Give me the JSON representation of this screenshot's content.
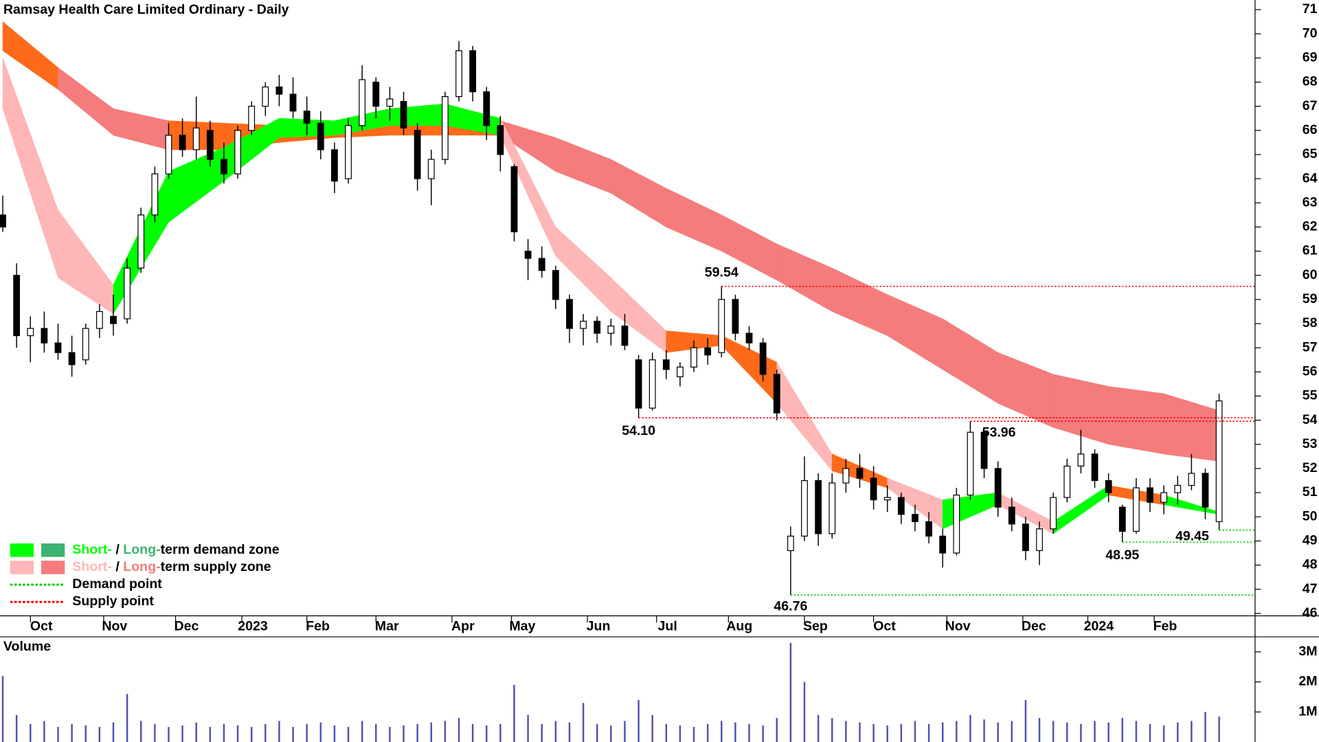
{
  "chart_data": [
    {
      "type": "candlestick",
      "title": "Ramsay Health Care Limited Ordinary - Daily",
      "xlim": [
        -0.2,
        90.6
      ],
      "xticks": [
        {
          "value": 2.0,
          "label": "Oct"
        },
        {
          "value": 7.3,
          "label": "Nov"
        },
        {
          "value": 12.5,
          "label": "Dec"
        },
        {
          "value": 17.3,
          "label": "2023"
        },
        {
          "value": 22,
          "label": "Feb"
        },
        {
          "value": 27,
          "label": "Mar"
        },
        {
          "value": 32.5,
          "label": "Apr"
        },
        {
          "value": 36.8,
          "label": "May"
        },
        {
          "value": 42.3,
          "label": "Jun"
        },
        {
          "value": 47.3,
          "label": "Jul"
        },
        {
          "value": 52.5,
          "label": "Aug"
        },
        {
          "value": 58,
          "label": "Sep"
        },
        {
          "value": 63,
          "label": "Oct"
        },
        {
          "value": 68.3,
          "label": "Nov"
        },
        {
          "value": 73.8,
          "label": "Dec"
        },
        {
          "value": 78.5,
          "label": "2024"
        },
        {
          "value": 83.3,
          "label": "Feb"
        }
      ],
      "ylim": [
        45.9,
        71.4
      ],
      "yticks": [
        46,
        47,
        48,
        49,
        50,
        51,
        52,
        53,
        54,
        55,
        56,
        57,
        58,
        59,
        60,
        61,
        62,
        63,
        64,
        65,
        66,
        67,
        68,
        69,
        70,
        71
      ],
      "up_color": "#ffffff",
      "down_color": "#000000",
      "ohlc": [
        [
          62.5,
          63.3,
          61.8,
          62.0
        ],
        [
          60,
          60.5,
          57,
          57.5
        ],
        [
          57.5,
          58.3,
          56.4,
          57.8
        ],
        [
          57.8,
          58.5,
          56.8,
          57.2
        ],
        [
          57.2,
          58,
          56.5,
          56.8
        ],
        [
          56.8,
          57.5,
          55.8,
          56.3
        ],
        [
          56.5,
          58,
          56.3,
          57.8
        ],
        [
          57.8,
          58.8,
          57.4,
          58.5
        ],
        [
          58.3,
          59.2,
          57.5,
          58
        ],
        [
          58.2,
          60.7,
          58,
          60.3
        ],
        [
          60.3,
          62.8,
          60.1,
          62.5
        ],
        [
          62.5,
          64.5,
          62.2,
          64.2
        ],
        [
          64.2,
          66.3,
          64,
          65.8
        ],
        [
          65.8,
          66.5,
          64.9,
          65.2
        ],
        [
          65.2,
          67.4,
          64.8,
          66.1
        ],
        [
          66,
          66.4,
          64.5,
          64.8
        ],
        [
          64.8,
          65.5,
          63.8,
          64.2
        ],
        [
          64.2,
          66.2,
          64,
          66
        ],
        [
          66,
          67.2,
          65.8,
          67
        ],
        [
          67,
          68,
          66.6,
          67.8
        ],
        [
          67.8,
          68.3,
          67,
          67.5
        ],
        [
          67.5,
          68.2,
          66.5,
          66.8
        ],
        [
          66.8,
          67.4,
          65.8,
          66.3
        ],
        [
          66.3,
          66.8,
          64.8,
          65.2
        ],
        [
          65.2,
          65.5,
          63.4,
          63.9
        ],
        [
          64,
          66.5,
          63.8,
          66.2
        ],
        [
          66.2,
          68.7,
          66,
          68.1
        ],
        [
          68,
          68.2,
          66.5,
          67
        ],
        [
          67,
          67.8,
          66.4,
          67.3
        ],
        [
          67.2,
          67.6,
          65.8,
          66.1
        ],
        [
          66,
          66.3,
          63.5,
          64
        ],
        [
          64,
          65.2,
          62.9,
          64.8
        ],
        [
          64.8,
          67.6,
          64.6,
          67.4
        ],
        [
          67.4,
          69.7,
          67.2,
          69.3
        ],
        [
          69.3,
          69.5,
          67.2,
          67.6
        ],
        [
          67.6,
          67.8,
          65.6,
          66.2
        ],
        [
          66.2,
          66.6,
          64.3,
          65
        ],
        [
          64.5,
          64.6,
          61.4,
          61.8
        ],
        [
          61,
          61.5,
          59.8,
          60.7
        ],
        [
          60.7,
          61.2,
          59.9,
          60.2
        ],
        [
          60.2,
          60.4,
          58.6,
          59
        ],
        [
          59,
          59.2,
          57.2,
          57.8
        ],
        [
          57.8,
          58.4,
          57.1,
          58.1
        ],
        [
          58.1,
          58.3,
          57.2,
          57.6
        ],
        [
          57.6,
          58.2,
          57.1,
          57.9
        ],
        [
          57.9,
          58.4,
          56.9,
          57.1
        ],
        [
          56.5,
          56.7,
          54.1,
          54.5
        ],
        [
          54.5,
          56.8,
          54.4,
          56.5
        ],
        [
          56.5,
          56.9,
          55.7,
          56.1
        ],
        [
          55.8,
          56.4,
          55.4,
          56.2
        ],
        [
          56.2,
          57.3,
          56,
          57
        ],
        [
          57,
          57.4,
          56.3,
          56.7
        ],
        [
          56.8,
          59.54,
          56.6,
          59
        ],
        [
          59,
          59.2,
          57.3,
          57.6
        ],
        [
          57.6,
          57.9,
          56.9,
          57.2
        ],
        [
          57.2,
          57.4,
          55.6,
          55.9
        ],
        [
          55.9,
          56.1,
          54,
          54.3
        ],
        [
          48.6,
          49.6,
          46.76,
          49.2
        ],
        [
          49.2,
          52.5,
          49,
          51.5
        ],
        [
          51.5,
          51.8,
          48.8,
          49.3
        ],
        [
          49.3,
          51.8,
          49.1,
          51.4
        ],
        [
          51.4,
          52.4,
          51,
          52
        ],
        [
          52,
          52.6,
          51.2,
          51.6
        ],
        [
          51.6,
          52.1,
          50.3,
          50.7
        ],
        [
          50.7,
          51.3,
          50.2,
          50.8
        ],
        [
          50.8,
          51,
          49.7,
          50.1
        ],
        [
          50.1,
          50.5,
          49.4,
          49.8
        ],
        [
          49.8,
          50.2,
          48.9,
          49.2
        ],
        [
          49.2,
          49.5,
          47.9,
          48.5
        ],
        [
          48.5,
          51.2,
          48.4,
          50.9
        ],
        [
          50.9,
          53.96,
          50.7,
          53.5
        ],
        [
          53.5,
          53.7,
          51.6,
          52
        ],
        [
          52,
          52.3,
          50,
          50.4
        ],
        [
          50.4,
          50.8,
          49.4,
          49.7
        ],
        [
          49.7,
          50,
          48.2,
          48.6
        ],
        [
          48.6,
          49.8,
          48,
          49.5
        ],
        [
          49.5,
          51,
          49.3,
          50.8
        ],
        [
          50.8,
          52.4,
          50.6,
          52.1
        ],
        [
          52.1,
          53.6,
          51.8,
          52.6
        ],
        [
          52.6,
          52.8,
          51.2,
          51.5
        ],
        [
          51.5,
          51.8,
          50.6,
          51
        ],
        [
          50.4,
          50.5,
          48.95,
          49.4
        ],
        [
          49.4,
          51.6,
          49.3,
          51.2
        ],
        [
          51.2,
          51.6,
          50.2,
          50.6
        ],
        [
          50.6,
          51.3,
          50.1,
          51
        ],
        [
          51,
          51.7,
          50.5,
          51.3
        ],
        [
          51.3,
          52.6,
          51.1,
          51.8
        ],
        [
          51.8,
          52,
          49.9,
          50.4
        ],
        [
          49.8,
          55.1,
          49.45,
          54.8
        ]
      ],
      "bands": [
        {
          "x": [
            0,
            4,
            8,
            12,
            16,
            20,
            24,
            28,
            32,
            36,
            40,
            44,
            48,
            52,
            56,
            60,
            64,
            68,
            72,
            76,
            80,
            84,
            88
          ],
          "upper": [
            70.5,
            68.6,
            66.9,
            66.4,
            66.3,
            66.2,
            66.1,
            66.2,
            66.2,
            66.4,
            65.7,
            64.8,
            63.6,
            62.5,
            61.3,
            60.3,
            59.2,
            58.2,
            56.8,
            55.9,
            55.4,
            55.1,
            54.4
          ],
          "lower": [
            69.3,
            67.7,
            65.8,
            65.2,
            65.2,
            65.5,
            65.7,
            65.8,
            65.8,
            65.8,
            64.3,
            63.4,
            62.0,
            61,
            59.8,
            58.5,
            57.5,
            56.1,
            54.7,
            53.7,
            53,
            52.6,
            52.3
          ],
          "segment_colors": [
            "#ff6a1a",
            "#f47c7c",
            "#f47c7c",
            "#ff6a1a",
            "#ff6a1a",
            "#ff6a1a",
            "#ff6a1a",
            "#ff6a1a",
            "#ff6a1a",
            "#f47c7c",
            "#f47c7c",
            "#f47c7c",
            "#f47c7c",
            "#f47c7c",
            "#f47c7c",
            "#f47c7c",
            "#f47c7c",
            "#f47c7c",
            "#f47c7c",
            "#f47c7c",
            "#f47c7c",
            "#f47c7c"
          ]
        },
        {
          "x": [
            0,
            4,
            8,
            12,
            16,
            20,
            24,
            28,
            32,
            36,
            40,
            44,
            48,
            52,
            56,
            60,
            64,
            68,
            72,
            76,
            80,
            84,
            88
          ],
          "upper": [
            69,
            62.7,
            59.6,
            64.3,
            65.3,
            66.5,
            66.4,
            66.9,
            67.1,
            66.5,
            62,
            59.9,
            57.7,
            57.5,
            56.4,
            52.6,
            51.6,
            50.7,
            51,
            49.8,
            51.3,
            50.9,
            50.2
          ],
          "lower": [
            66.9,
            59.9,
            58.4,
            62.2,
            63.9,
            65.7,
            65.8,
            66.2,
            66.2,
            65.8,
            60.8,
            58.5,
            56.8,
            57.1,
            54.7,
            51.9,
            51.2,
            49.5,
            50.5,
            49.3,
            50.9,
            50.5,
            50.1
          ],
          "segment_colors": [
            "#ffb6b6",
            "#ffb6b6",
            "#00ff00",
            "#00ff00",
            "#00ff00",
            "#00ff00",
            "#00ff00",
            "#00ff00",
            "#00ff00",
            "#ffb6b6",
            "#ffb6b6",
            "#ffb6b6",
            "#ff6a1a",
            "#ff6a1a",
            "#ffb6b6",
            "#ff6a1a",
            "#ffb6b6",
            "#00ff00",
            "#ffb6b6",
            "#00ff00",
            "#ff6a1a",
            "#00ff00"
          ]
        }
      ],
      "annotations": [
        {
          "x": 52,
          "value": 59.54,
          "label": "59.54",
          "color": "#ff0000"
        },
        {
          "x": 46,
          "value": 54.1,
          "label": "54.10",
          "color": "#ff0000"
        },
        {
          "x": 70,
          "value": 53.96,
          "label": "53.96",
          "color": "#ff0000"
        },
        {
          "x": 57,
          "value": 46.76,
          "label": "46.76",
          "color": "#00cc00"
        },
        {
          "x": 81,
          "value": 48.95,
          "label": "48.95",
          "color": "#00cc00"
        },
        {
          "x": 88,
          "value": 49.45,
          "label": "49.45",
          "color": "#00cc00"
        }
      ],
      "legend": [
        {
          "swatches": [
            "#00ff00",
            "#3cb371"
          ],
          "parts": [
            "Short-",
            " / ",
            "Long-",
            "term demand zone"
          ]
        },
        {
          "swatches": [
            "#ffb6b6",
            "#f47c7c"
          ],
          "parts": [
            "Short-",
            " / ",
            "Long-",
            "term supply zone"
          ]
        },
        {
          "line": "#00cc00",
          "parts": [
            "Demand point"
          ]
        },
        {
          "line": "#ff0000",
          "parts": [
            "Supply point"
          ]
        }
      ]
    },
    {
      "type": "bar",
      "title": "Volume",
      "title_color": "#4b0082",
      "color": "#5050b0",
      "xlim": [
        -0.2,
        90.6
      ],
      "ylim": [
        0,
        3500000
      ],
      "yticks": [
        {
          "value": 1000000,
          "label": "1M"
        },
        {
          "value": 2000000,
          "label": "2M"
        },
        {
          "value": 3000000,
          "label": "3M"
        }
      ],
      "values": [
        2200000,
        900000,
        600000,
        700000,
        500000,
        600000,
        550000,
        500000,
        650000,
        1600000,
        700000,
        600000,
        500000,
        550000,
        650000,
        500000,
        600000,
        550000,
        500000,
        600000,
        700000,
        500000,
        600000,
        650000,
        550000,
        500000,
        700000,
        600000,
        500000,
        550000,
        600000,
        650000,
        700000,
        800000,
        600000,
        550000,
        600000,
        1900000,
        900000,
        600000,
        700000,
        650000,
        1300000,
        600000,
        550000,
        700000,
        1400000,
        900000,
        600000,
        550000,
        500000,
        600000,
        700000,
        650000,
        600000,
        550000,
        800000,
        3300000,
        2000000,
        900000,
        800000,
        700000,
        650000,
        600000,
        550000,
        600000,
        700000,
        600000,
        650000,
        700000,
        900000,
        750000,
        650000,
        700000,
        1400000,
        800000,
        700000,
        650000,
        600000,
        700000,
        650000,
        800000,
        700000,
        600000,
        550000,
        650000,
        700000,
        1000000,
        850000
      ]
    }
  ]
}
